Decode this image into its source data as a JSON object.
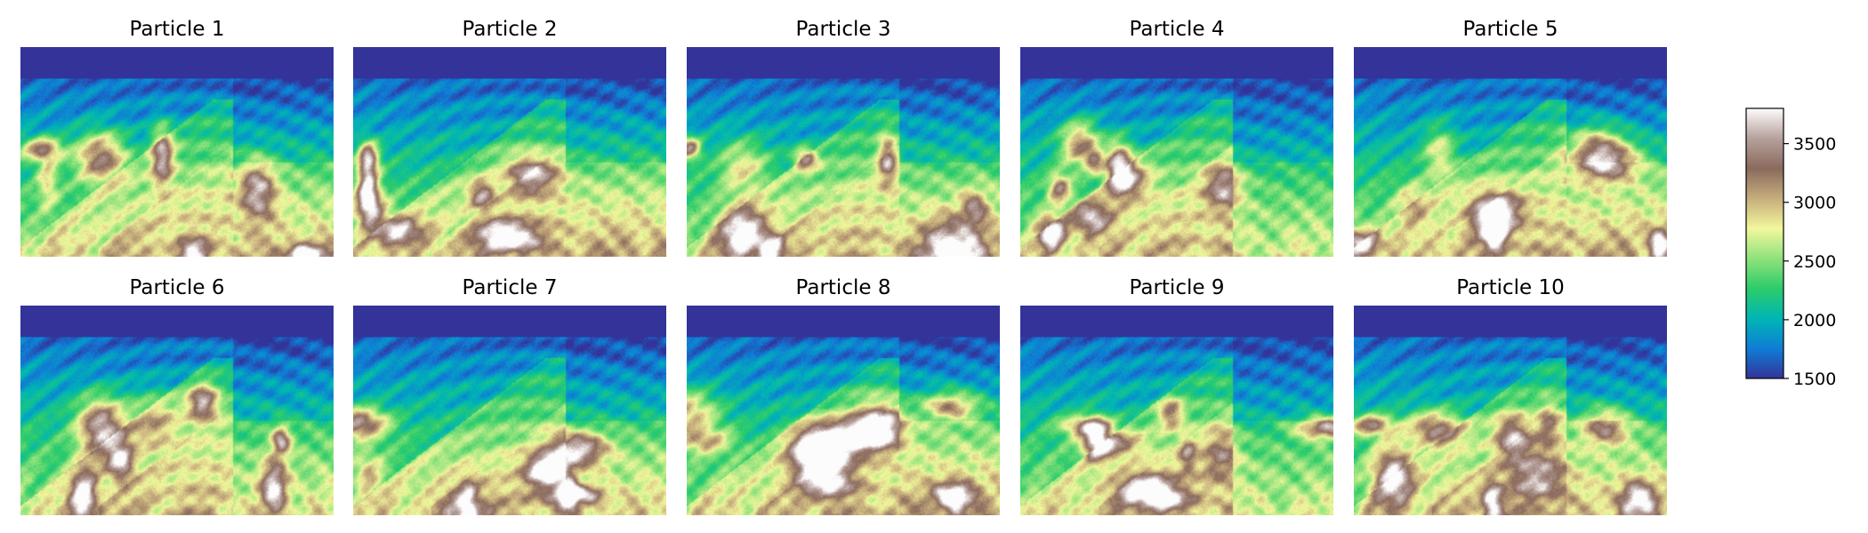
{
  "chart_data": {
    "type": "heatmap",
    "layout": {
      "rows": 2,
      "cols": 5
    },
    "panels": [
      {
        "title": "Particle 1"
      },
      {
        "title": "Particle 2"
      },
      {
        "title": "Particle 3"
      },
      {
        "title": "Particle 4"
      },
      {
        "title": "Particle 5"
      },
      {
        "title": "Particle 6"
      },
      {
        "title": "Particle 7"
      },
      {
        "title": "Particle 8"
      },
      {
        "title": "Particle 9"
      },
      {
        "title": "Particle 10"
      }
    ],
    "colorbar": {
      "colormap": "terrain",
      "range": [
        1500,
        3800
      ],
      "ticks": [
        1500,
        2000,
        2500,
        3000,
        3500
      ],
      "tick_labels": [
        "1500",
        "2000",
        "2500",
        "3000",
        "3500"
      ],
      "colors": [
        "#333399",
        "#0f7dd6",
        "#00b6b4",
        "#2ccc6a",
        "#90e27c",
        "#f2f79c",
        "#c6ad7c",
        "#8a6a5d",
        "#b7a19c",
        "#fdfcfc"
      ]
    }
  }
}
